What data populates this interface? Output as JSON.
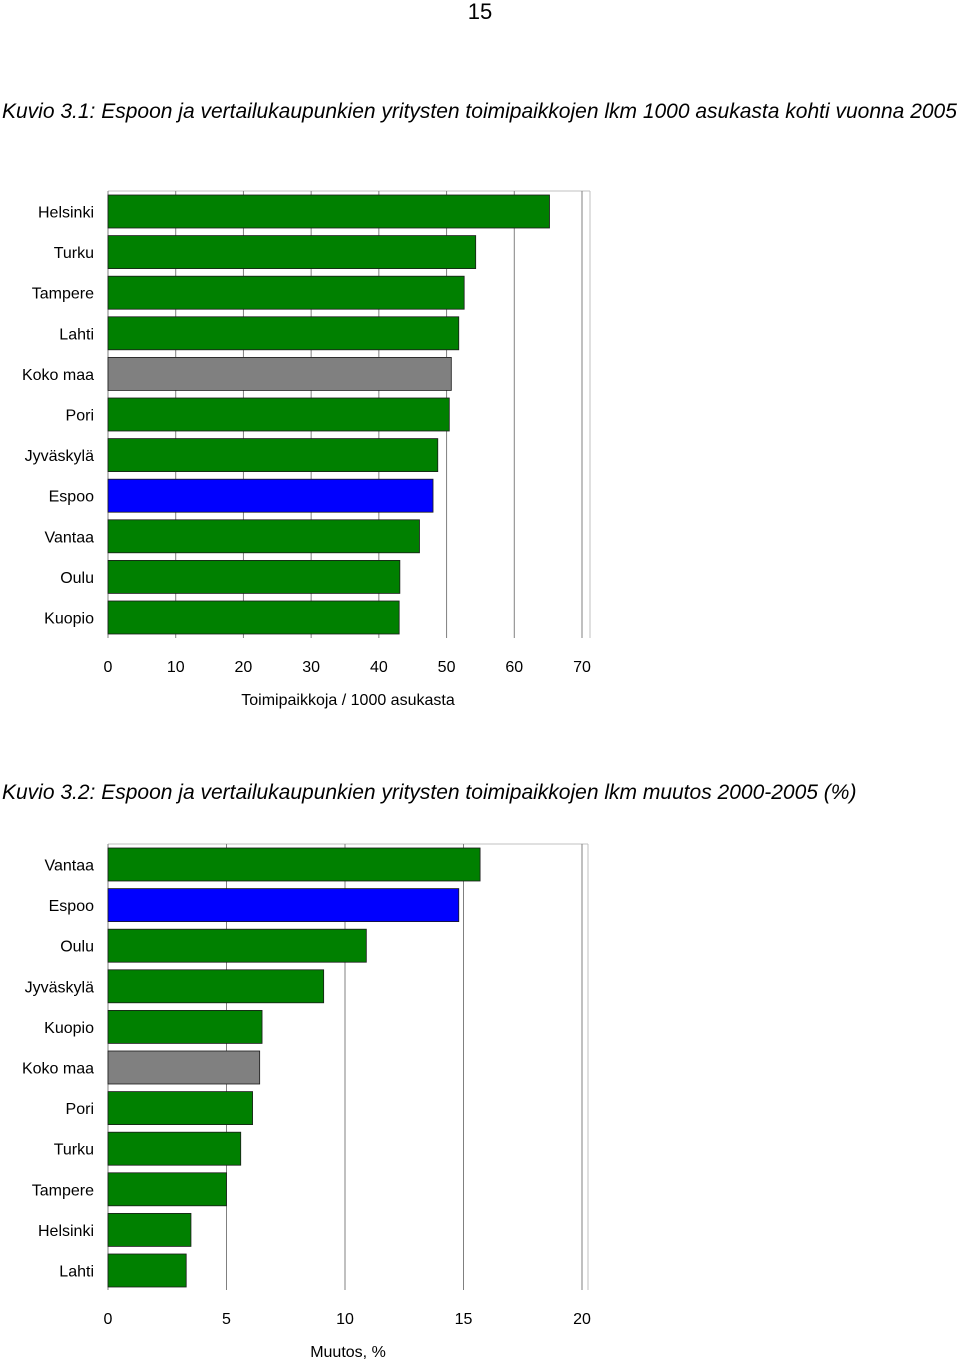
{
  "page_number": "15",
  "captions": {
    "fig1": "Kuvio 3.1: Espoon ja vertailukaupunkien yritysten toimipaikkojen lkm 1000 asukasta kohti vuonna 2005",
    "fig2": "Kuvio 3.2: Espoon ja vertailukaupunkien yritysten toimipaikkojen lkm muutos 2000-2005 (%)"
  },
  "colors": {
    "city": "#008000",
    "espoo": "#0000ff",
    "koko_maa": "#808080",
    "grid": "#808080"
  },
  "chart_data": [
    {
      "type": "bar",
      "orientation": "horizontal",
      "categories": [
        "Helsinki",
        "Turku",
        "Tampere",
        "Lahti",
        "Koko maa",
        "Pori",
        "Jyväskylä",
        "Espoo",
        "Vantaa",
        "Oulu",
        "Kuopio"
      ],
      "values": [
        65.2,
        54.3,
        52.6,
        51.8,
        50.7,
        50.4,
        48.7,
        48.0,
        46.0,
        43.1,
        43.0
      ],
      "bar_colors": [
        "#008000",
        "#008000",
        "#008000",
        "#008000",
        "#808080",
        "#008000",
        "#008000",
        "#0000ff",
        "#008000",
        "#008000",
        "#008000"
      ],
      "xlabel": "Toimipaikkoja / 1000 asukasta",
      "xlim": [
        0,
        70
      ],
      "xticks": [
        "0",
        "10",
        "20",
        "30",
        "40",
        "50",
        "60",
        "70"
      ],
      "grid": true
    },
    {
      "type": "bar",
      "orientation": "horizontal",
      "categories": [
        "Vantaa",
        "Espoo",
        "Oulu",
        "Jyväskylä",
        "Kuopio",
        "Koko maa",
        "Pori",
        "Turku",
        "Tampere",
        "Helsinki",
        "Lahti"
      ],
      "values": [
        15.7,
        14.8,
        10.9,
        9.1,
        6.5,
        6.4,
        6.1,
        5.6,
        5.0,
        3.5,
        3.3
      ],
      "bar_colors": [
        "#008000",
        "#0000ff",
        "#008000",
        "#008000",
        "#008000",
        "#808080",
        "#008000",
        "#008000",
        "#008000",
        "#008000",
        "#008000"
      ],
      "xlabel": "Muutos, %",
      "xlim": [
        0,
        20
      ],
      "xticks": [
        "0",
        "5",
        "10",
        "15",
        "20"
      ],
      "grid": true
    }
  ]
}
